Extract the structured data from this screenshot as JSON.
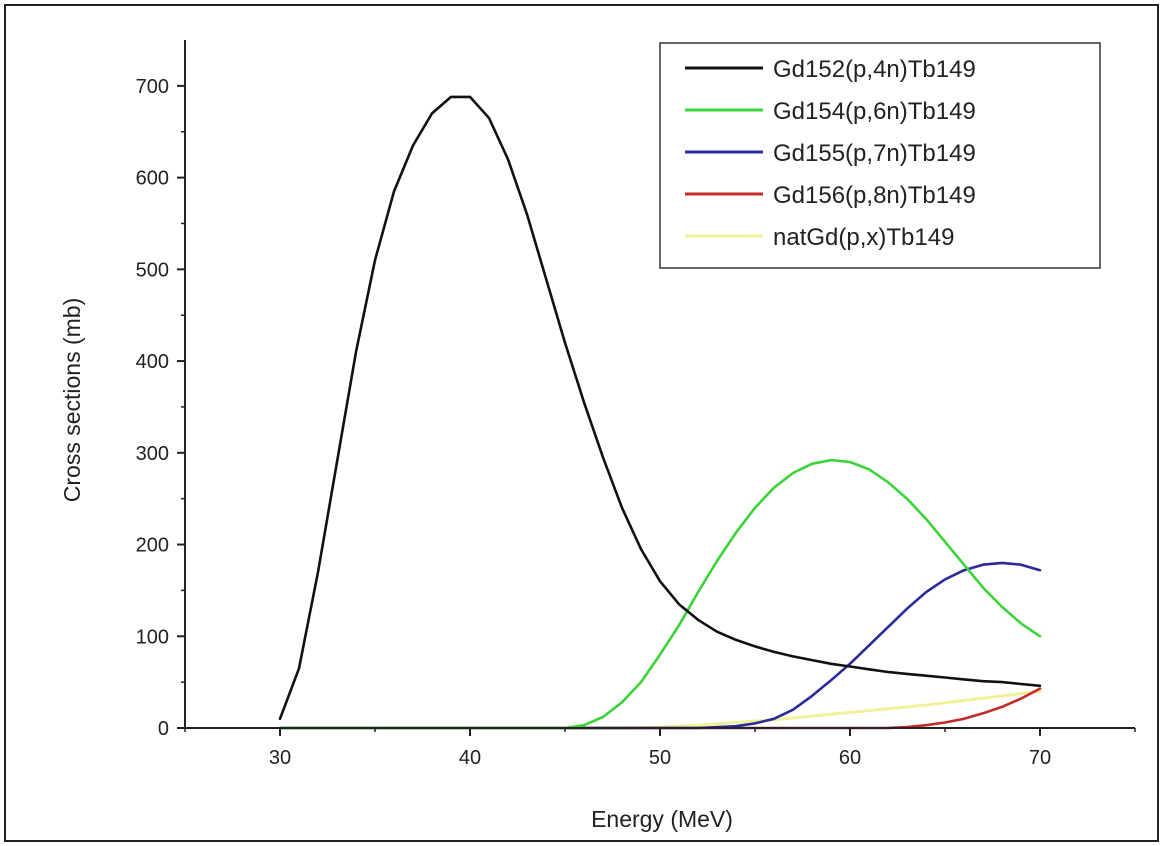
{
  "chart_data": {
    "type": "line",
    "title": "",
    "xlabel": "Energy (MeV)",
    "ylabel": "Cross sections (mb)",
    "xlim": [
      25,
      75
    ],
    "ylim": [
      0,
      750
    ],
    "xticks": [
      30,
      40,
      50,
      60,
      70
    ],
    "yticks": [
      0,
      100,
      200,
      300,
      400,
      500,
      600,
      700
    ],
    "legend_position": "top-right",
    "grid": false,
    "series": [
      {
        "name": "Gd152(p,4n)Tb149",
        "color": "#111111",
        "x": [
          30,
          31,
          32,
          33,
          34,
          35,
          36,
          37,
          38,
          39,
          40,
          41,
          42,
          43,
          44,
          45,
          46,
          47,
          48,
          49,
          50,
          51,
          52,
          53,
          54,
          55,
          56,
          57,
          58,
          59,
          60,
          61,
          62,
          63,
          64,
          65,
          66,
          67,
          68,
          69,
          70
        ],
        "y": [
          10,
          65,
          170,
          290,
          410,
          510,
          585,
          635,
          670,
          688,
          688,
          665,
          620,
          560,
          490,
          420,
          355,
          295,
          240,
          195,
          160,
          135,
          118,
          105,
          96,
          89,
          83,
          78,
          74,
          70,
          67,
          64,
          61,
          59,
          57,
          55,
          53,
          51,
          50,
          48,
          46
        ]
      },
      {
        "name": "Gd154(p,6n)Tb149",
        "color": "#3ad43a",
        "x": [
          30,
          40,
          45,
          46,
          47,
          48,
          49,
          50,
          51,
          52,
          53,
          54,
          55,
          56,
          57,
          58,
          59,
          60,
          61,
          62,
          63,
          64,
          65,
          66,
          67,
          68,
          69,
          70
        ],
        "y": [
          0,
          0,
          0,
          3,
          12,
          28,
          50,
          80,
          112,
          148,
          182,
          213,
          240,
          262,
          278,
          288,
          292,
          290,
          282,
          268,
          250,
          228,
          203,
          178,
          153,
          132,
          114,
          100
        ]
      },
      {
        "name": "Gd155(p,7n)Tb149",
        "color": "#2a2a9c",
        "x": [
          30,
          50,
          52,
          54,
          55,
          56,
          57,
          58,
          59,
          60,
          61,
          62,
          63,
          64,
          65,
          66,
          67,
          68,
          69,
          70
        ],
        "y": [
          0,
          0,
          0,
          2,
          5,
          10,
          20,
          35,
          52,
          70,
          90,
          110,
          130,
          148,
          162,
          172,
          178,
          180,
          178,
          172
        ]
      },
      {
        "name": "Gd156(p,8n)Tb149",
        "color": "#c42a2a",
        "x": [
          30,
          60,
          62,
          63,
          64,
          65,
          66,
          67,
          68,
          69,
          70
        ],
        "y": [
          0,
          0,
          0,
          1,
          3,
          6,
          10,
          16,
          23,
          32,
          43
        ]
      },
      {
        "name": "natGd(p,x)Tb149",
        "color": "#f2f09a",
        "x": [
          30,
          48,
          50,
          52,
          54,
          56,
          58,
          60,
          62,
          64,
          66,
          68,
          70
        ],
        "y": [
          0,
          0,
          1,
          3,
          6,
          9,
          13,
          17,
          21,
          25,
          30,
          35,
          40
        ]
      }
    ]
  }
}
